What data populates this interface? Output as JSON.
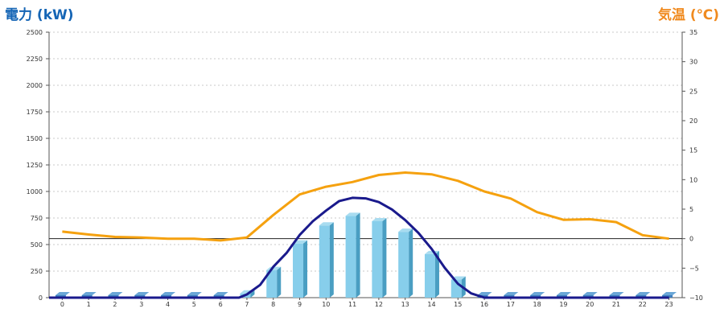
{
  "chart_data": {
    "type": "bar+line",
    "left_axis": {
      "title": "電力 (kW)",
      "ticks": [
        0,
        250,
        500,
        750,
        1000,
        1250,
        1500,
        1750,
        2000,
        2250,
        2500
      ],
      "range": [
        0,
        2500
      ],
      "color": "#1565b5"
    },
    "right_axis": {
      "title": "気温 (℃)",
      "ticks": [
        -10,
        -5,
        0,
        5,
        10,
        15,
        20,
        25,
        30,
        35
      ],
      "range": [
        -10,
        35
      ],
      "color": "#f08a1e"
    },
    "categories": [
      "0",
      "1",
      "2",
      "3",
      "4",
      "5",
      "6",
      "7",
      "8",
      "9",
      "10",
      "11",
      "12",
      "13",
      "14",
      "15",
      "16",
      "17",
      "18",
      "19",
      "20",
      "21",
      "22",
      "23"
    ],
    "series": [
      {
        "kind": "bar",
        "axis": "left",
        "color": "#87ceeb",
        "values": [
          0,
          0,
          0,
          0,
          0,
          0,
          0,
          40,
          260,
          510,
          680,
          770,
          720,
          620,
          410,
          170,
          0,
          0,
          0,
          0,
          0,
          0,
          0,
          0
        ]
      },
      {
        "kind": "curve",
        "axis": "left",
        "color": "#1a1a8c",
        "points": [
          [
            6.7,
            0
          ],
          [
            7,
            30
          ],
          [
            7.5,
            120
          ],
          [
            8,
            290
          ],
          [
            8.5,
            420
          ],
          [
            9,
            590
          ],
          [
            9.5,
            720
          ],
          [
            10,
            820
          ],
          [
            10.5,
            910
          ],
          [
            11,
            940
          ],
          [
            11.5,
            935
          ],
          [
            12,
            900
          ],
          [
            12.5,
            830
          ],
          [
            13,
            730
          ],
          [
            13.5,
            610
          ],
          [
            14,
            460
          ],
          [
            14.5,
            280
          ],
          [
            15,
            130
          ],
          [
            15.5,
            40
          ],
          [
            16,
            0
          ],
          [
            23,
            0
          ]
        ],
        "start": 0
      },
      {
        "kind": "line",
        "axis": "right",
        "color": "#f5a10f",
        "values": [
          1.2,
          0.7,
          0.3,
          0.2,
          0.0,
          0.0,
          -0.3,
          0.2,
          4.0,
          7.5,
          8.8,
          9.6,
          10.8,
          11.2,
          10.9,
          9.8,
          8.0,
          6.8,
          4.5,
          3.2,
          3.3,
          2.8,
          0.6,
          0.0
        ]
      }
    ],
    "grid": true,
    "baseline_right_value": 0
  }
}
